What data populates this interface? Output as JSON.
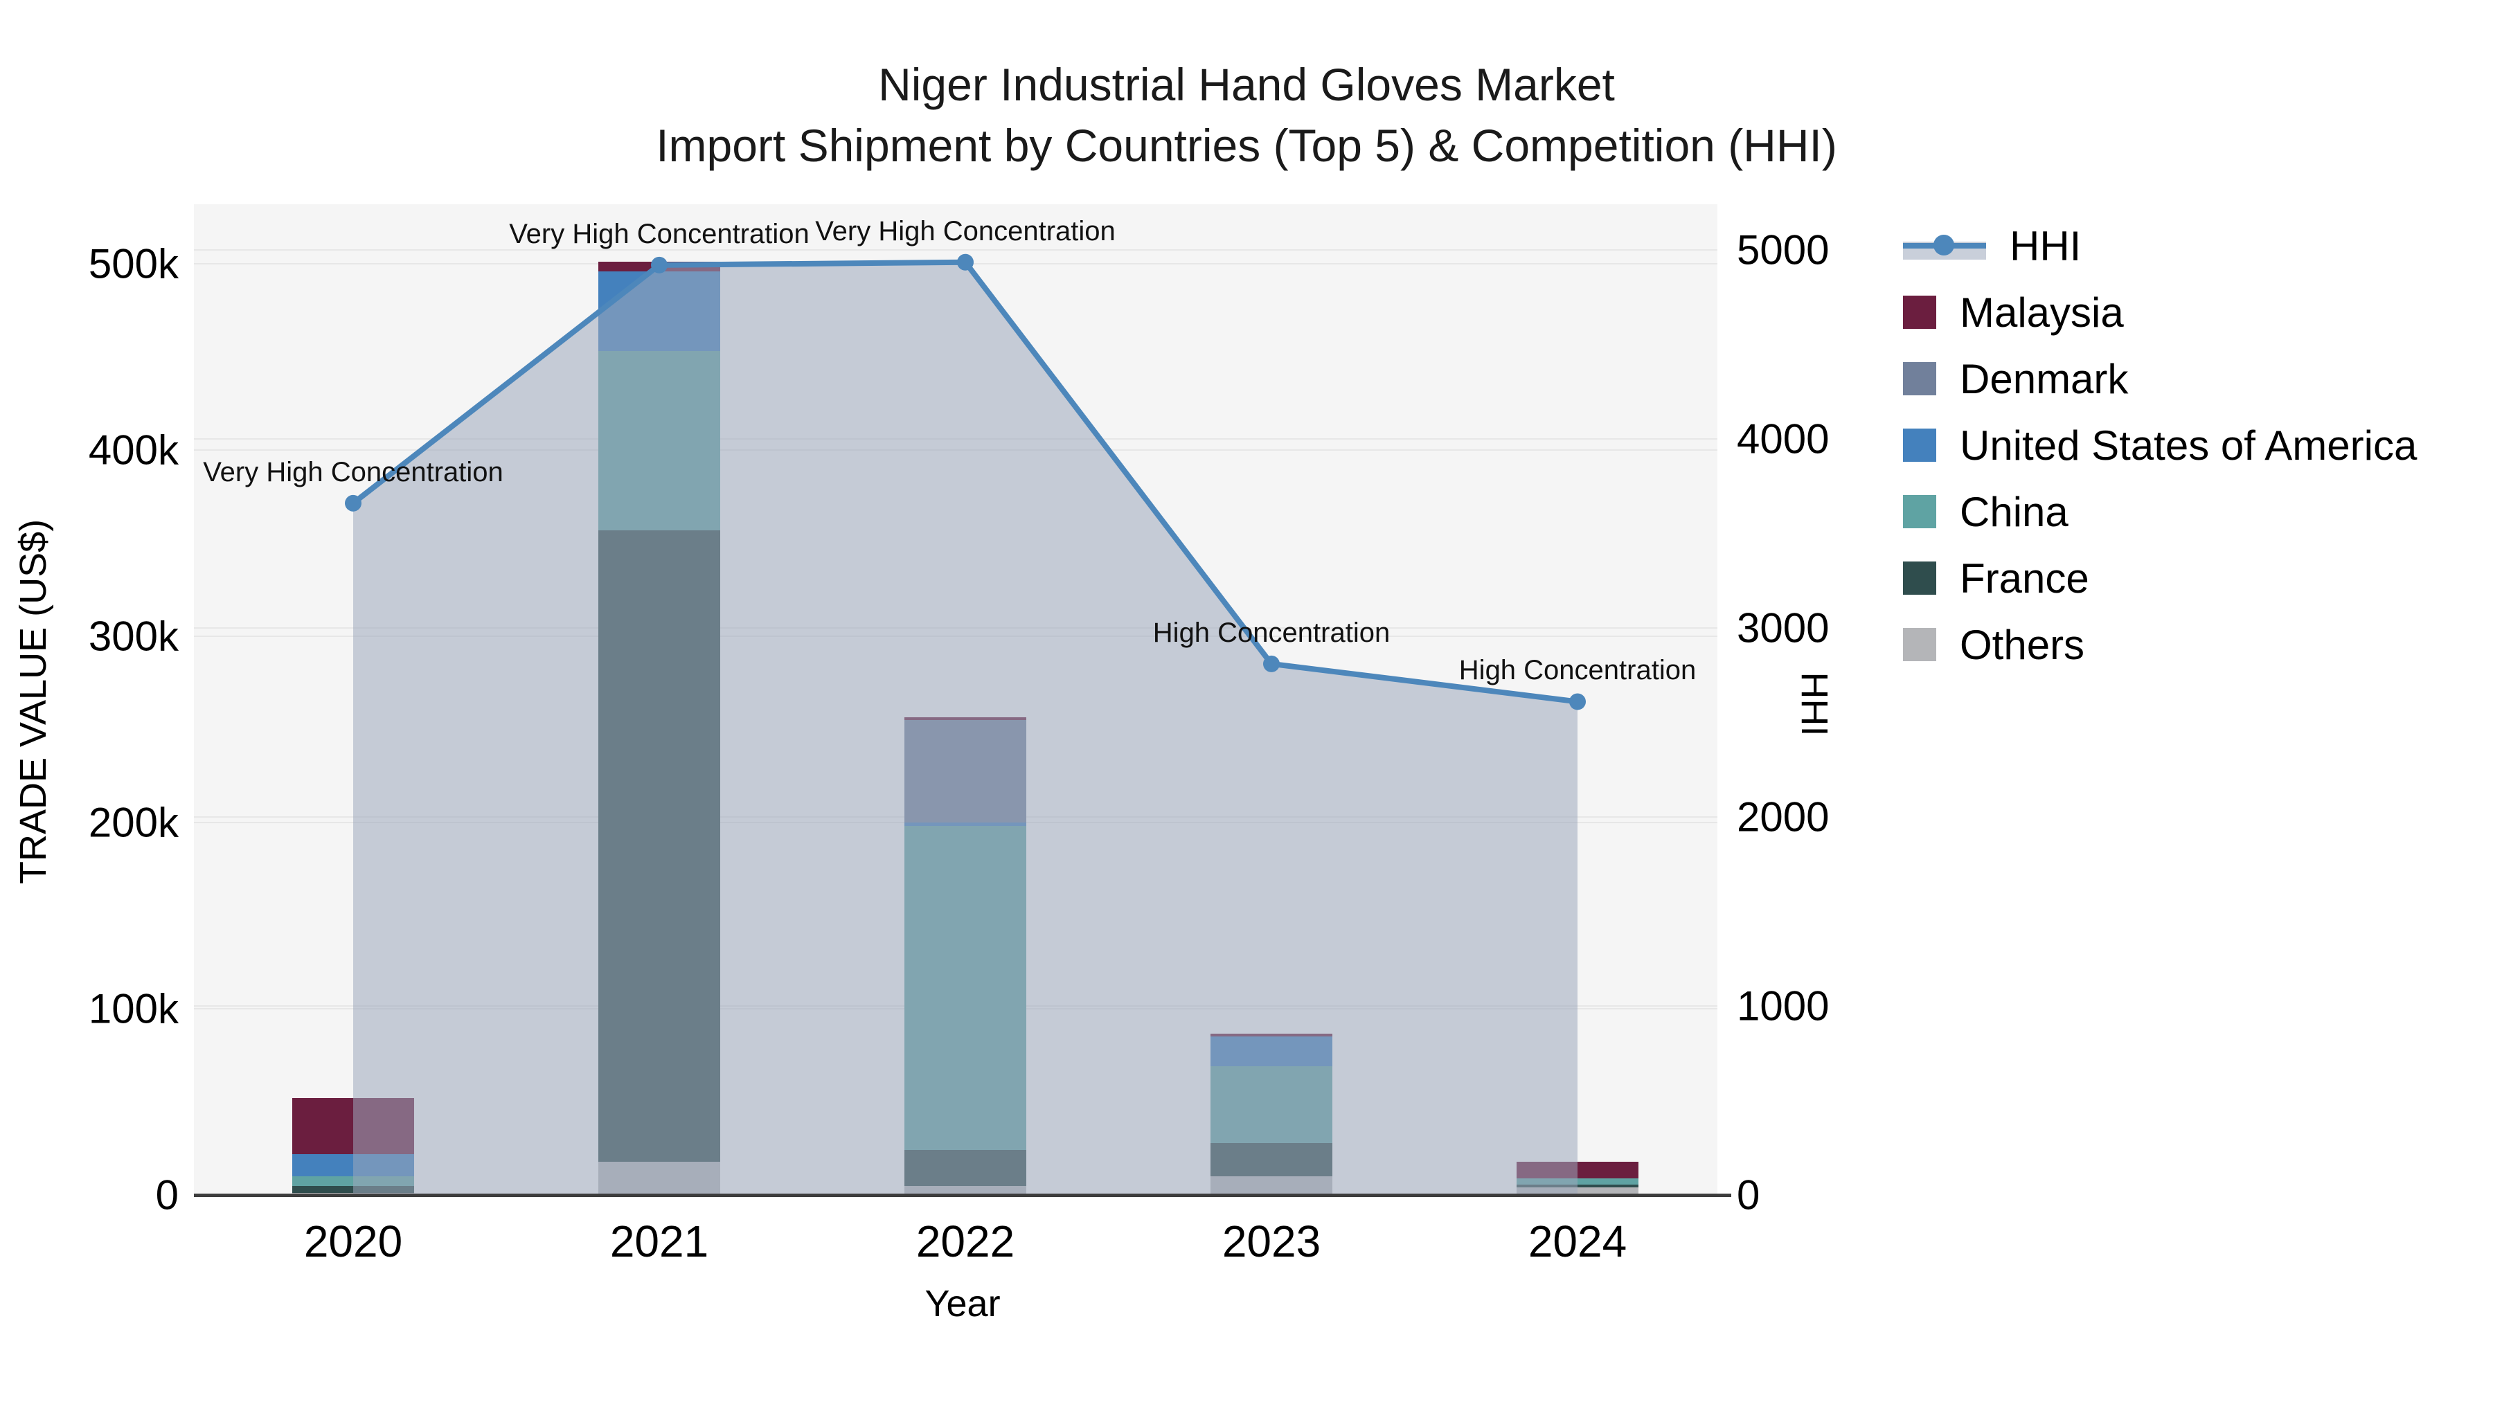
{
  "title": {
    "line1": "Niger Industrial Hand Gloves Market",
    "line2": "Import Shipment by Countries (Top 5) & Competition (HHI)"
  },
  "axes": {
    "x": {
      "label": "Year",
      "ticks": [
        "2020",
        "2021",
        "2022",
        "2023",
        "2024"
      ]
    },
    "y_left": {
      "label": "TRADE VALUE (US$)",
      "ticks": [
        "0",
        "100k",
        "200k",
        "300k",
        "400k",
        "500k"
      ],
      "range": [
        0,
        500000
      ]
    },
    "y_right": {
      "label": "HHI",
      "ticks": [
        "0",
        "1000",
        "2000",
        "3000",
        "4000",
        "5000"
      ],
      "range": [
        0,
        5000
      ]
    }
  },
  "chart_data": {
    "type": "bar+line",
    "categories": [
      "2020",
      "2021",
      "2022",
      "2023",
      "2024"
    ],
    "bar_stack_order_bottom_to_top": [
      "Others",
      "France",
      "China",
      "United States of America",
      "Denmark",
      "Malaysia"
    ],
    "series": [
      {
        "name": "Others",
        "color": "#b4b5b8",
        "values": [
          1000,
          18000,
          5000,
          10000,
          4000
        ]
      },
      {
        "name": "France",
        "color": "#2f4d4d",
        "values": [
          4000,
          339000,
          19000,
          18000,
          1500
        ]
      },
      {
        "name": "China",
        "color": "#5fa3a3",
        "values": [
          5000,
          96000,
          174000,
          41000,
          3500
        ]
      },
      {
        "name": "United States of America",
        "color": "#4481bd",
        "values": [
          12000,
          43000,
          2000,
          16000,
          0
        ]
      },
      {
        "name": "Denmark",
        "color": "#71809b",
        "values": [
          0,
          0,
          55000,
          0,
          0
        ]
      },
      {
        "name": "Malaysia",
        "color": "#6b1e3f",
        "values": [
          30000,
          5000,
          1500,
          1500,
          9000
        ]
      }
    ],
    "bar_totals": [
      52000,
      501000,
      256500,
      86500,
      18000
    ],
    "line_series": {
      "name": "HHI",
      "axis": "right",
      "color": "#4d87bb",
      "fill_color": "rgba(157,167,187,0.55)",
      "values": [
        3660,
        4920,
        4935,
        2810,
        2610
      ]
    },
    "annotations": [
      {
        "category": "2020",
        "text": "Very High Concentration"
      },
      {
        "category": "2021",
        "text": "Very High Concentration"
      },
      {
        "category": "2022",
        "text": "Very High Concentration"
      },
      {
        "category": "2023",
        "text": "High Concentration"
      },
      {
        "category": "2024",
        "text": "High Concentration"
      }
    ],
    "grid": true,
    "legend_position": "right"
  },
  "legend": {
    "items": [
      {
        "label": "HHI",
        "swatch": "line-marker-area",
        "color": "#4d87bb"
      },
      {
        "label": "Malaysia",
        "swatch": "square",
        "color": "#6b1e3f"
      },
      {
        "label": "Denmark",
        "swatch": "square",
        "color": "#71809b"
      },
      {
        "label": "United States of America",
        "swatch": "square",
        "color": "#4481bd"
      },
      {
        "label": "China",
        "swatch": "square",
        "color": "#5fa3a3"
      },
      {
        "label": "France",
        "swatch": "square",
        "color": "#2f4d4d"
      },
      {
        "label": "Others",
        "swatch": "square",
        "color": "#b4b5b8"
      }
    ]
  }
}
